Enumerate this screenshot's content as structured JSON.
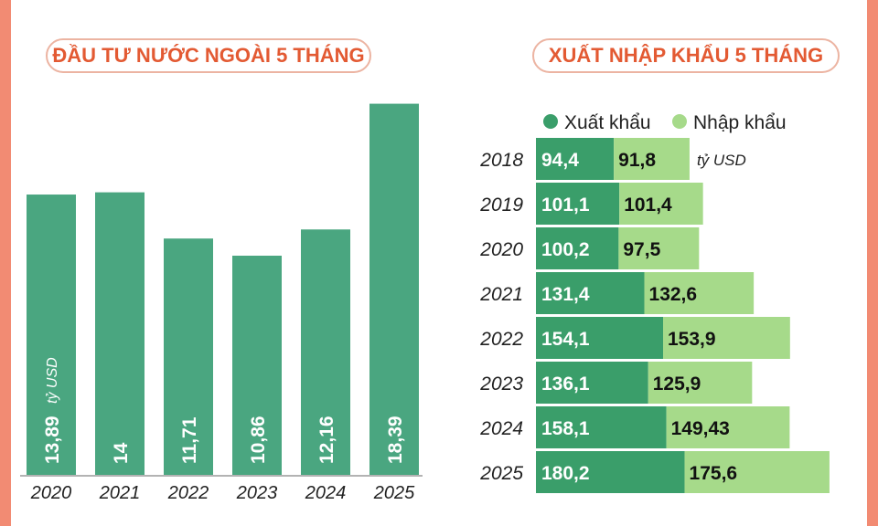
{
  "colors": {
    "accent_orange": "#e35a33",
    "border_orange": "#f28b73",
    "bar_green": "#4aa680",
    "export_green": "#3a9e6a",
    "import_green": "#a6da8a"
  },
  "left_title": "ĐẦU TƯ NƯỚC NGOÀI 5 THÁNG",
  "right_title": "XUẤT NHẬP KHẨU 5 THÁNG",
  "chart_data": [
    {
      "type": "bar",
      "title": "ĐẦU TƯ NƯỚC NGOÀI 5 THÁNG",
      "unit": "tỷ USD",
      "categories": [
        "2020",
        "2021",
        "2022",
        "2023",
        "2024",
        "2025"
      ],
      "values": [
        13.89,
        14,
        11.71,
        10.86,
        12.16,
        18.39
      ],
      "value_labels": [
        "13,89",
        "14",
        "11,71",
        "10,86",
        "12,16",
        "18,39"
      ],
      "grid": false
    },
    {
      "type": "bar",
      "orientation": "horizontal",
      "stacked": true,
      "title": "XUẤT NHẬP KHẨU 5 THÁNG",
      "unit": "tỷ USD",
      "legend_position": "top",
      "categories": [
        "2018",
        "2019",
        "2020",
        "2021",
        "2022",
        "2023",
        "2024",
        "2025"
      ],
      "series": [
        {
          "name": "Xuất khẩu",
          "values": [
            94.4,
            101.1,
            100.2,
            131.4,
            154.1,
            136.1,
            158.1,
            180.2
          ],
          "labels": [
            "94,4",
            "101,1",
            "100,2",
            "131,4",
            "154,1",
            "136,1",
            "158,1",
            "180,2"
          ]
        },
        {
          "name": "Nhập khẩu",
          "values": [
            91.8,
            101.4,
            97.5,
            132.6,
            153.9,
            125.9,
            149.43,
            175.6
          ],
          "labels": [
            "91,8",
            "101,4",
            "97,5",
            "132,6",
            "153,9",
            "125,9",
            "149,43",
            "175,6"
          ]
        }
      ],
      "grid": false
    }
  ]
}
